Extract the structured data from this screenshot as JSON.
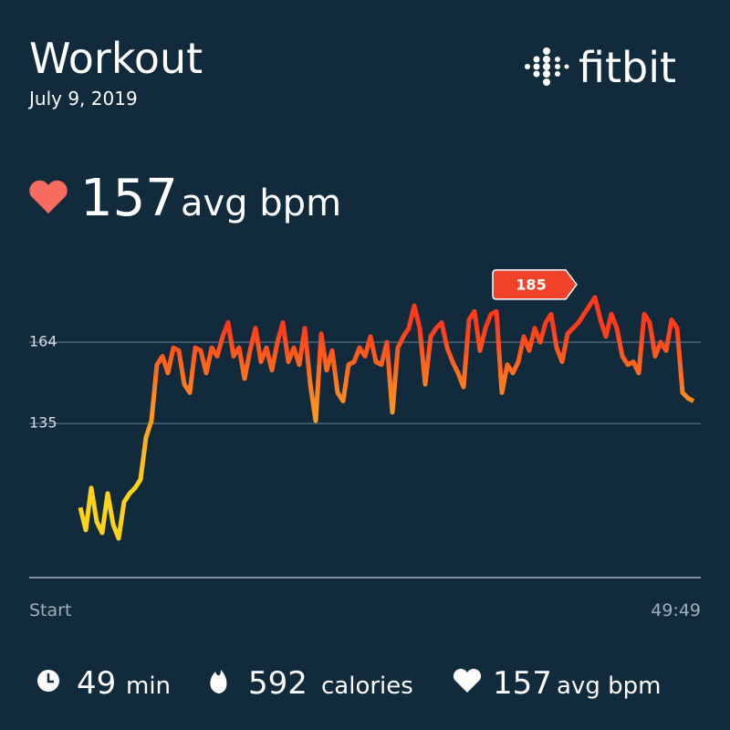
{
  "header": {
    "title": "Workout",
    "date": "July 9, 2019",
    "brand": "fitbit"
  },
  "summary": {
    "value": 157,
    "unit": "avg bpm"
  },
  "chart_data": {
    "type": "line",
    "values": [
      105,
      97,
      112,
      100,
      96,
      110,
      99,
      94,
      107,
      110,
      112,
      115,
      130,
      136,
      156,
      159,
      153,
      162,
      161,
      149,
      146,
      162,
      161,
      153,
      162,
      159,
      166,
      171,
      159,
      162,
      151,
      161,
      169,
      157,
      162,
      154,
      164,
      171,
      157,
      162,
      156,
      169,
      149,
      136,
      167,
      154,
      161,
      146,
      143,
      156,
      157,
      162,
      159,
      166,
      157,
      156,
      164,
      139,
      162,
      166,
      169,
      177,
      169,
      149,
      166,
      169,
      171,
      162,
      157,
      153,
      148,
      172,
      175,
      161,
      169,
      174,
      175,
      146,
      156,
      153,
      157,
      166,
      161,
      169,
      164,
      171,
      174,
      162,
      157,
      167,
      169,
      171,
      174,
      177,
      180,
      172,
      166,
      174,
      169,
      159,
      156,
      157,
      153,
      174,
      171,
      159,
      164,
      161,
      172,
      169,
      146,
      144,
      143
    ],
    "ylim": [
      80,
      192
    ],
    "yticks": [
      164,
      135
    ],
    "grid": true,
    "x_labels": [
      "Start",
      "49:49"
    ],
    "max_label": 185,
    "gradient": [
      "#ffd21a",
      "#ff8f1f",
      "#ff3b1c"
    ]
  },
  "stats": [
    {
      "value": 49,
      "unit": "min"
    },
    {
      "value": 592,
      "unit": "calories"
    },
    {
      "value": 157,
      "unit": "avg bpm"
    }
  ]
}
